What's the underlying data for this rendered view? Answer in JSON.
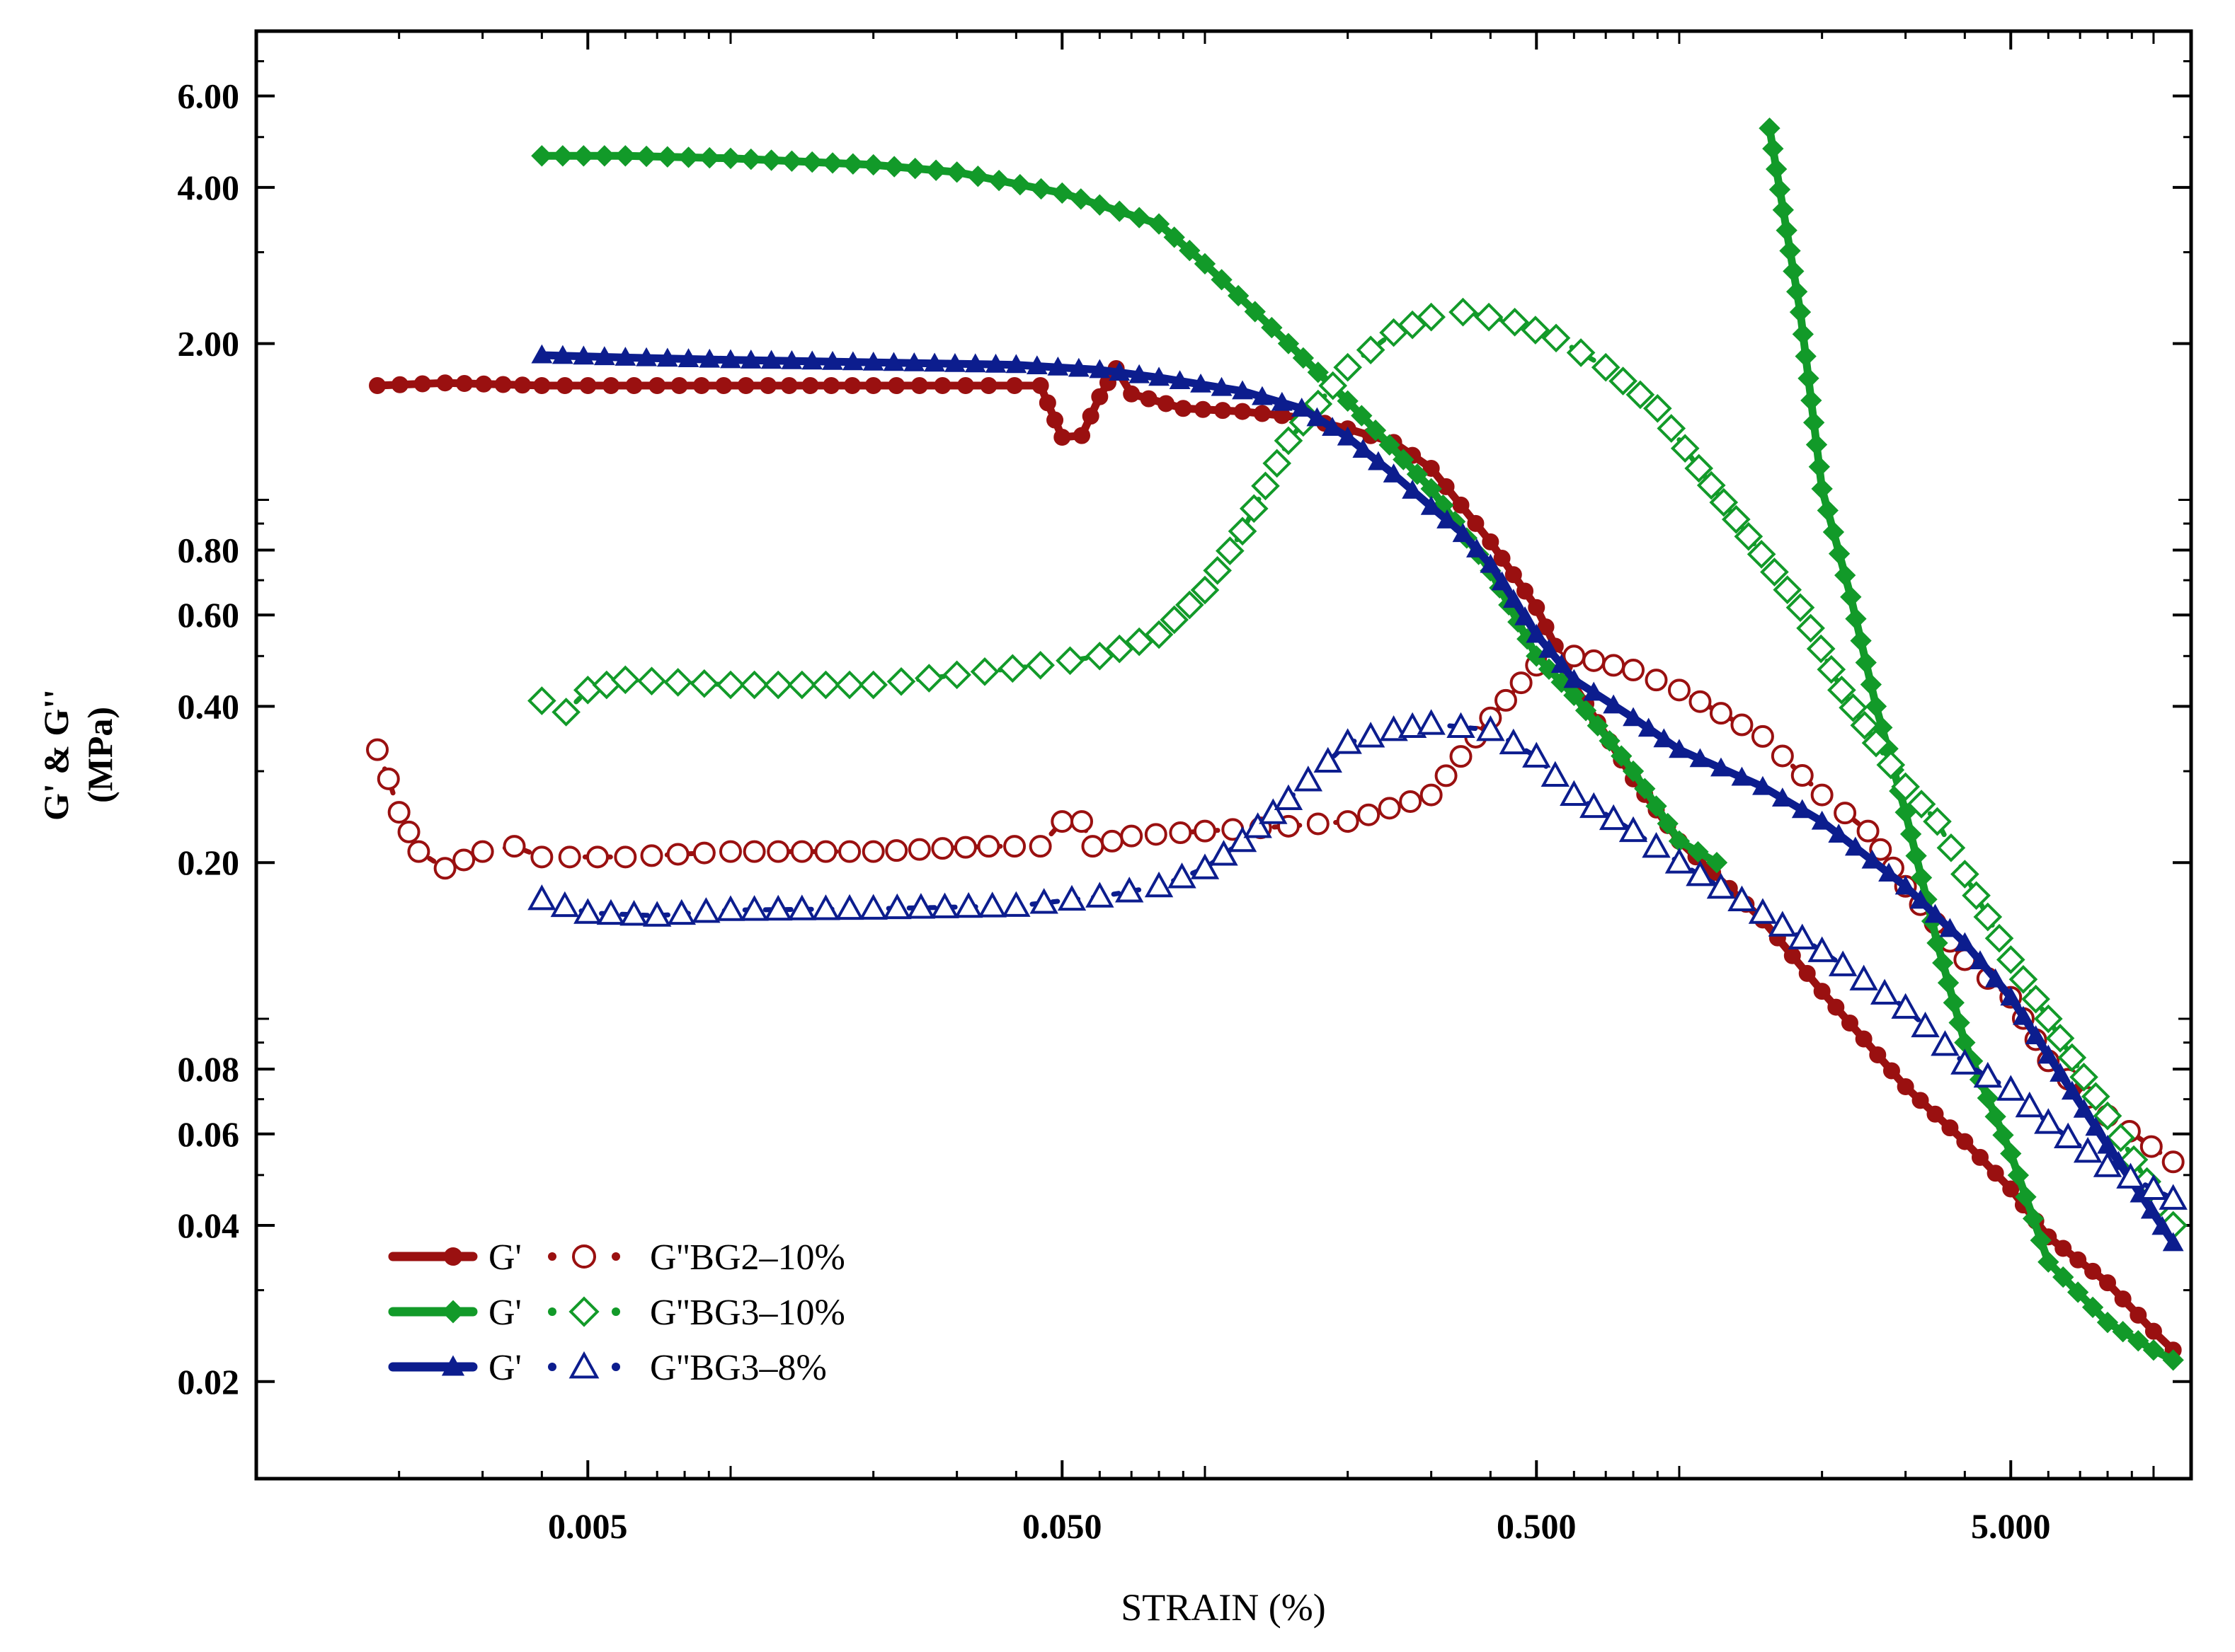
{
  "chart_data": {
    "type": "line",
    "title": "",
    "xlabel": "STRAIN (%)",
    "ylabel_line1": "G' & G''",
    "ylabel_line2": "(MPa)",
    "xscale": "log",
    "yscale": "log",
    "xlim": [
      0.001,
      12
    ],
    "ylim": [
      0.013,
      8.0
    ],
    "x_ticks": [
      {
        "value": 0.005,
        "label": "0.005"
      },
      {
        "value": 0.05,
        "label": "0.050"
      },
      {
        "value": 0.5,
        "label": "0.500"
      },
      {
        "value": 5,
        "label": "5.000"
      }
    ],
    "y_ticks": [
      {
        "value": 6,
        "label": "6.00"
      },
      {
        "value": 4,
        "label": "4.00"
      },
      {
        "value": 2,
        "label": "2.00"
      },
      {
        "value": 0.8,
        "label": "0.80"
      },
      {
        "value": 0.6,
        "label": "0.60"
      },
      {
        "value": 0.4,
        "label": "0.40"
      },
      {
        "value": 0.2,
        "label": "0.20"
      },
      {
        "value": 0.08,
        "label": "0.08"
      },
      {
        "value": 0.06,
        "label": "0.06"
      },
      {
        "value": 0.04,
        "label": "0.04"
      },
      {
        "value": 0.02,
        "label": "0.02"
      }
    ],
    "legend": {
      "position": "bottom-left",
      "entries": [
        {
          "gp_label": "G'",
          "gpp_label": "G''BG2–10%",
          "color": "#9a1010",
          "gp_marker": "filled-circle",
          "gpp_marker": "open-circle"
        },
        {
          "gp_label": "G'",
          "gpp_label": "G''BG3–10%",
          "color": "#129a29",
          "gp_marker": "filled-diamond",
          "gpp_marker": "open-diamond"
        },
        {
          "gp_label": "G'",
          "gpp_label": "G''BG3–8%",
          "color": "#0c1d8e",
          "gp_marker": "filled-triangle",
          "gpp_marker": "open-triangle"
        }
      ]
    },
    "series": [
      {
        "name": "G' BG2–10%",
        "color": "#9a1010",
        "line": "solid",
        "marker": "circle",
        "fill": "filled",
        "points": [
          [
            0.0018,
            1.66
          ],
          [
            0.0025,
            1.68
          ],
          [
            0.004,
            1.66
          ],
          [
            0.007,
            1.66
          ],
          [
            0.012,
            1.66
          ],
          [
            0.02,
            1.66
          ],
          [
            0.035,
            1.66
          ],
          [
            0.045,
            1.66
          ],
          [
            0.05,
            1.32
          ],
          [
            0.055,
            1.33
          ],
          [
            0.06,
            1.58
          ],
          [
            0.065,
            1.79
          ],
          [
            0.07,
            1.6
          ],
          [
            0.09,
            1.5
          ],
          [
            0.12,
            1.48
          ],
          [
            0.16,
            1.44
          ],
          [
            0.2,
            1.37
          ],
          [
            0.25,
            1.29
          ],
          [
            0.3,
            1.15
          ],
          [
            0.4,
            0.83
          ],
          [
            0.5,
            0.62
          ],
          [
            0.6,
            0.44
          ],
          [
            0.8,
            0.29
          ],
          [
            1.0,
            0.22
          ],
          [
            1.5,
            0.155
          ],
          [
            2.0,
            0.113
          ],
          [
            3.0,
            0.074
          ],
          [
            4.0,
            0.058
          ],
          [
            5.0,
            0.047
          ],
          [
            6.0,
            0.038
          ],
          [
            8.0,
            0.031
          ],
          [
            10.0,
            0.025
          ],
          [
            11.0,
            0.023
          ]
        ]
      },
      {
        "name": "G'' BG2–10%",
        "color": "#9a1010",
        "line": "dotted",
        "marker": "circle",
        "fill": "open",
        "points": [
          [
            0.0018,
            0.33
          ],
          [
            0.0019,
            0.29
          ],
          [
            0.002,
            0.25
          ],
          [
            0.0022,
            0.21
          ],
          [
            0.0025,
            0.195
          ],
          [
            0.003,
            0.21
          ],
          [
            0.0035,
            0.215
          ],
          [
            0.004,
            0.205
          ],
          [
            0.006,
            0.205
          ],
          [
            0.01,
            0.21
          ],
          [
            0.02,
            0.21
          ],
          [
            0.035,
            0.215
          ],
          [
            0.045,
            0.215
          ],
          [
            0.05,
            0.24
          ],
          [
            0.055,
            0.24
          ],
          [
            0.058,
            0.215
          ],
          [
            0.07,
            0.225
          ],
          [
            0.1,
            0.23
          ],
          [
            0.15,
            0.235
          ],
          [
            0.2,
            0.24
          ],
          [
            0.3,
            0.27
          ],
          [
            0.4,
            0.38
          ],
          [
            0.5,
            0.48
          ],
          [
            0.6,
            0.5
          ],
          [
            0.8,
            0.47
          ],
          [
            1.0,
            0.43
          ],
          [
            1.5,
            0.35
          ],
          [
            2.0,
            0.27
          ],
          [
            2.5,
            0.23
          ],
          [
            3.0,
            0.18
          ],
          [
            4.0,
            0.13
          ],
          [
            5.0,
            0.11
          ],
          [
            6.0,
            0.083
          ],
          [
            8.0,
            0.065
          ],
          [
            11.0,
            0.053
          ]
        ]
      },
      {
        "name": "G' BG3–10%",
        "color": "#129a29",
        "line": "solid",
        "marker": "diamond",
        "fill": "filled",
        "points": [
          [
            0.004,
            4.6
          ],
          [
            0.006,
            4.6
          ],
          [
            0.01,
            4.55
          ],
          [
            0.02,
            4.42
          ],
          [
            0.03,
            4.28
          ],
          [
            0.05,
            3.9
          ],
          [
            0.06,
            3.7
          ],
          [
            0.08,
            3.4
          ],
          [
            0.1,
            2.85
          ],
          [
            0.15,
            2.0
          ],
          [
            0.2,
            1.55
          ],
          [
            0.3,
            1.05
          ],
          [
            0.4,
            0.73
          ],
          [
            0.5,
            0.5
          ],
          [
            0.6,
            0.42
          ],
          [
            0.8,
            0.3
          ],
          [
            1.0,
            0.22
          ],
          [
            1.2,
            0.2
          ]
        ]
      },
      {
        "name": "G' BG3–10% (high strain branch)",
        "color": "#129a29",
        "line": "solid",
        "marker": "diamond",
        "fill": "filled",
        "points": [
          [
            1.55,
            5.2
          ],
          [
            1.8,
            2.3
          ],
          [
            2.0,
            1.05
          ],
          [
            2.3,
            0.65
          ],
          [
            2.6,
            0.4
          ],
          [
            3.0,
            0.25
          ],
          [
            3.5,
            0.14
          ],
          [
            4.0,
            0.09
          ],
          [
            5.0,
            0.055
          ],
          [
            6.0,
            0.034
          ],
          [
            8.0,
            0.026
          ],
          [
            10.0,
            0.023
          ],
          [
            11.0,
            0.022
          ]
        ]
      },
      {
        "name": "G'' BG3–10%",
        "color": "#129a29",
        "line": "dotted",
        "marker": "diamond",
        "fill": "open",
        "points": [
          [
            0.004,
            0.41
          ],
          [
            0.0045,
            0.39
          ],
          [
            0.005,
            0.43
          ],
          [
            0.006,
            0.45
          ],
          [
            0.01,
            0.44
          ],
          [
            0.02,
            0.44
          ],
          [
            0.03,
            0.46
          ],
          [
            0.045,
            0.48
          ],
          [
            0.06,
            0.5
          ],
          [
            0.08,
            0.55
          ],
          [
            0.1,
            0.67
          ],
          [
            0.12,
            0.87
          ],
          [
            0.15,
            1.3
          ],
          [
            0.2,
            1.8
          ],
          [
            0.25,
            2.1
          ],
          [
            0.3,
            2.25
          ],
          [
            0.35,
            2.3
          ],
          [
            0.45,
            2.2
          ],
          [
            0.55,
            2.05
          ],
          [
            0.7,
            1.8
          ],
          [
            0.9,
            1.5
          ],
          [
            1.1,
            1.15
          ],
          [
            1.4,
            0.85
          ],
          [
            1.8,
            0.62
          ],
          [
            2.2,
            0.43
          ],
          [
            2.6,
            0.34
          ],
          [
            3.0,
            0.28
          ],
          [
            3.5,
            0.24
          ],
          [
            4.0,
            0.19
          ],
          [
            5.0,
            0.13
          ],
          [
            6.0,
            0.1
          ],
          [
            8.0,
            0.065
          ],
          [
            11.0,
            0.04
          ]
        ]
      },
      {
        "name": "G' BG3–8%",
        "color": "#0c1d8e",
        "line": "solid",
        "marker": "triangle",
        "fill": "filled",
        "points": [
          [
            0.004,
            1.9
          ],
          [
            0.006,
            1.88
          ],
          [
            0.01,
            1.86
          ],
          [
            0.02,
            1.84
          ],
          [
            0.04,
            1.82
          ],
          [
            0.06,
            1.78
          ],
          [
            0.08,
            1.72
          ],
          [
            0.12,
            1.62
          ],
          [
            0.16,
            1.5
          ],
          [
            0.2,
            1.32
          ],
          [
            0.25,
            1.12
          ],
          [
            0.3,
            0.97
          ],
          [
            0.35,
            0.86
          ],
          [
            0.4,
            0.75
          ],
          [
            0.5,
            0.55
          ],
          [
            0.6,
            0.45
          ],
          [
            0.8,
            0.38
          ],
          [
            1.0,
            0.33
          ],
          [
            1.5,
            0.28
          ],
          [
            2.0,
            0.24
          ],
          [
            3.0,
            0.18
          ],
          [
            4.0,
            0.14
          ],
          [
            5.0,
            0.11
          ],
          [
            6.0,
            0.085
          ],
          [
            8.0,
            0.057
          ],
          [
            11.0,
            0.037
          ]
        ]
      },
      {
        "name": "G'' BG3–8%",
        "color": "#0c1d8e",
        "line": "dotted",
        "marker": "triangle",
        "fill": "open",
        "points": [
          [
            0.004,
            0.17
          ],
          [
            0.005,
            0.16
          ],
          [
            0.007,
            0.158
          ],
          [
            0.01,
            0.162
          ],
          [
            0.02,
            0.163
          ],
          [
            0.04,
            0.165
          ],
          [
            0.06,
            0.172
          ],
          [
            0.08,
            0.18
          ],
          [
            0.1,
            0.195
          ],
          [
            0.12,
            0.22
          ],
          [
            0.15,
            0.265
          ],
          [
            0.2,
            0.34
          ],
          [
            0.25,
            0.36
          ],
          [
            0.3,
            0.37
          ],
          [
            0.4,
            0.36
          ],
          [
            0.5,
            0.32
          ],
          [
            0.6,
            0.27
          ],
          [
            0.8,
            0.23
          ],
          [
            1.0,
            0.2
          ],
          [
            1.5,
            0.16
          ],
          [
            2.0,
            0.135
          ],
          [
            3.0,
            0.105
          ],
          [
            4.0,
            0.082
          ],
          [
            5.0,
            0.073
          ],
          [
            6.0,
            0.063
          ],
          [
            8.0,
            0.052
          ],
          [
            10.0,
            0.047
          ],
          [
            11.0,
            0.045
          ]
        ]
      }
    ]
  }
}
